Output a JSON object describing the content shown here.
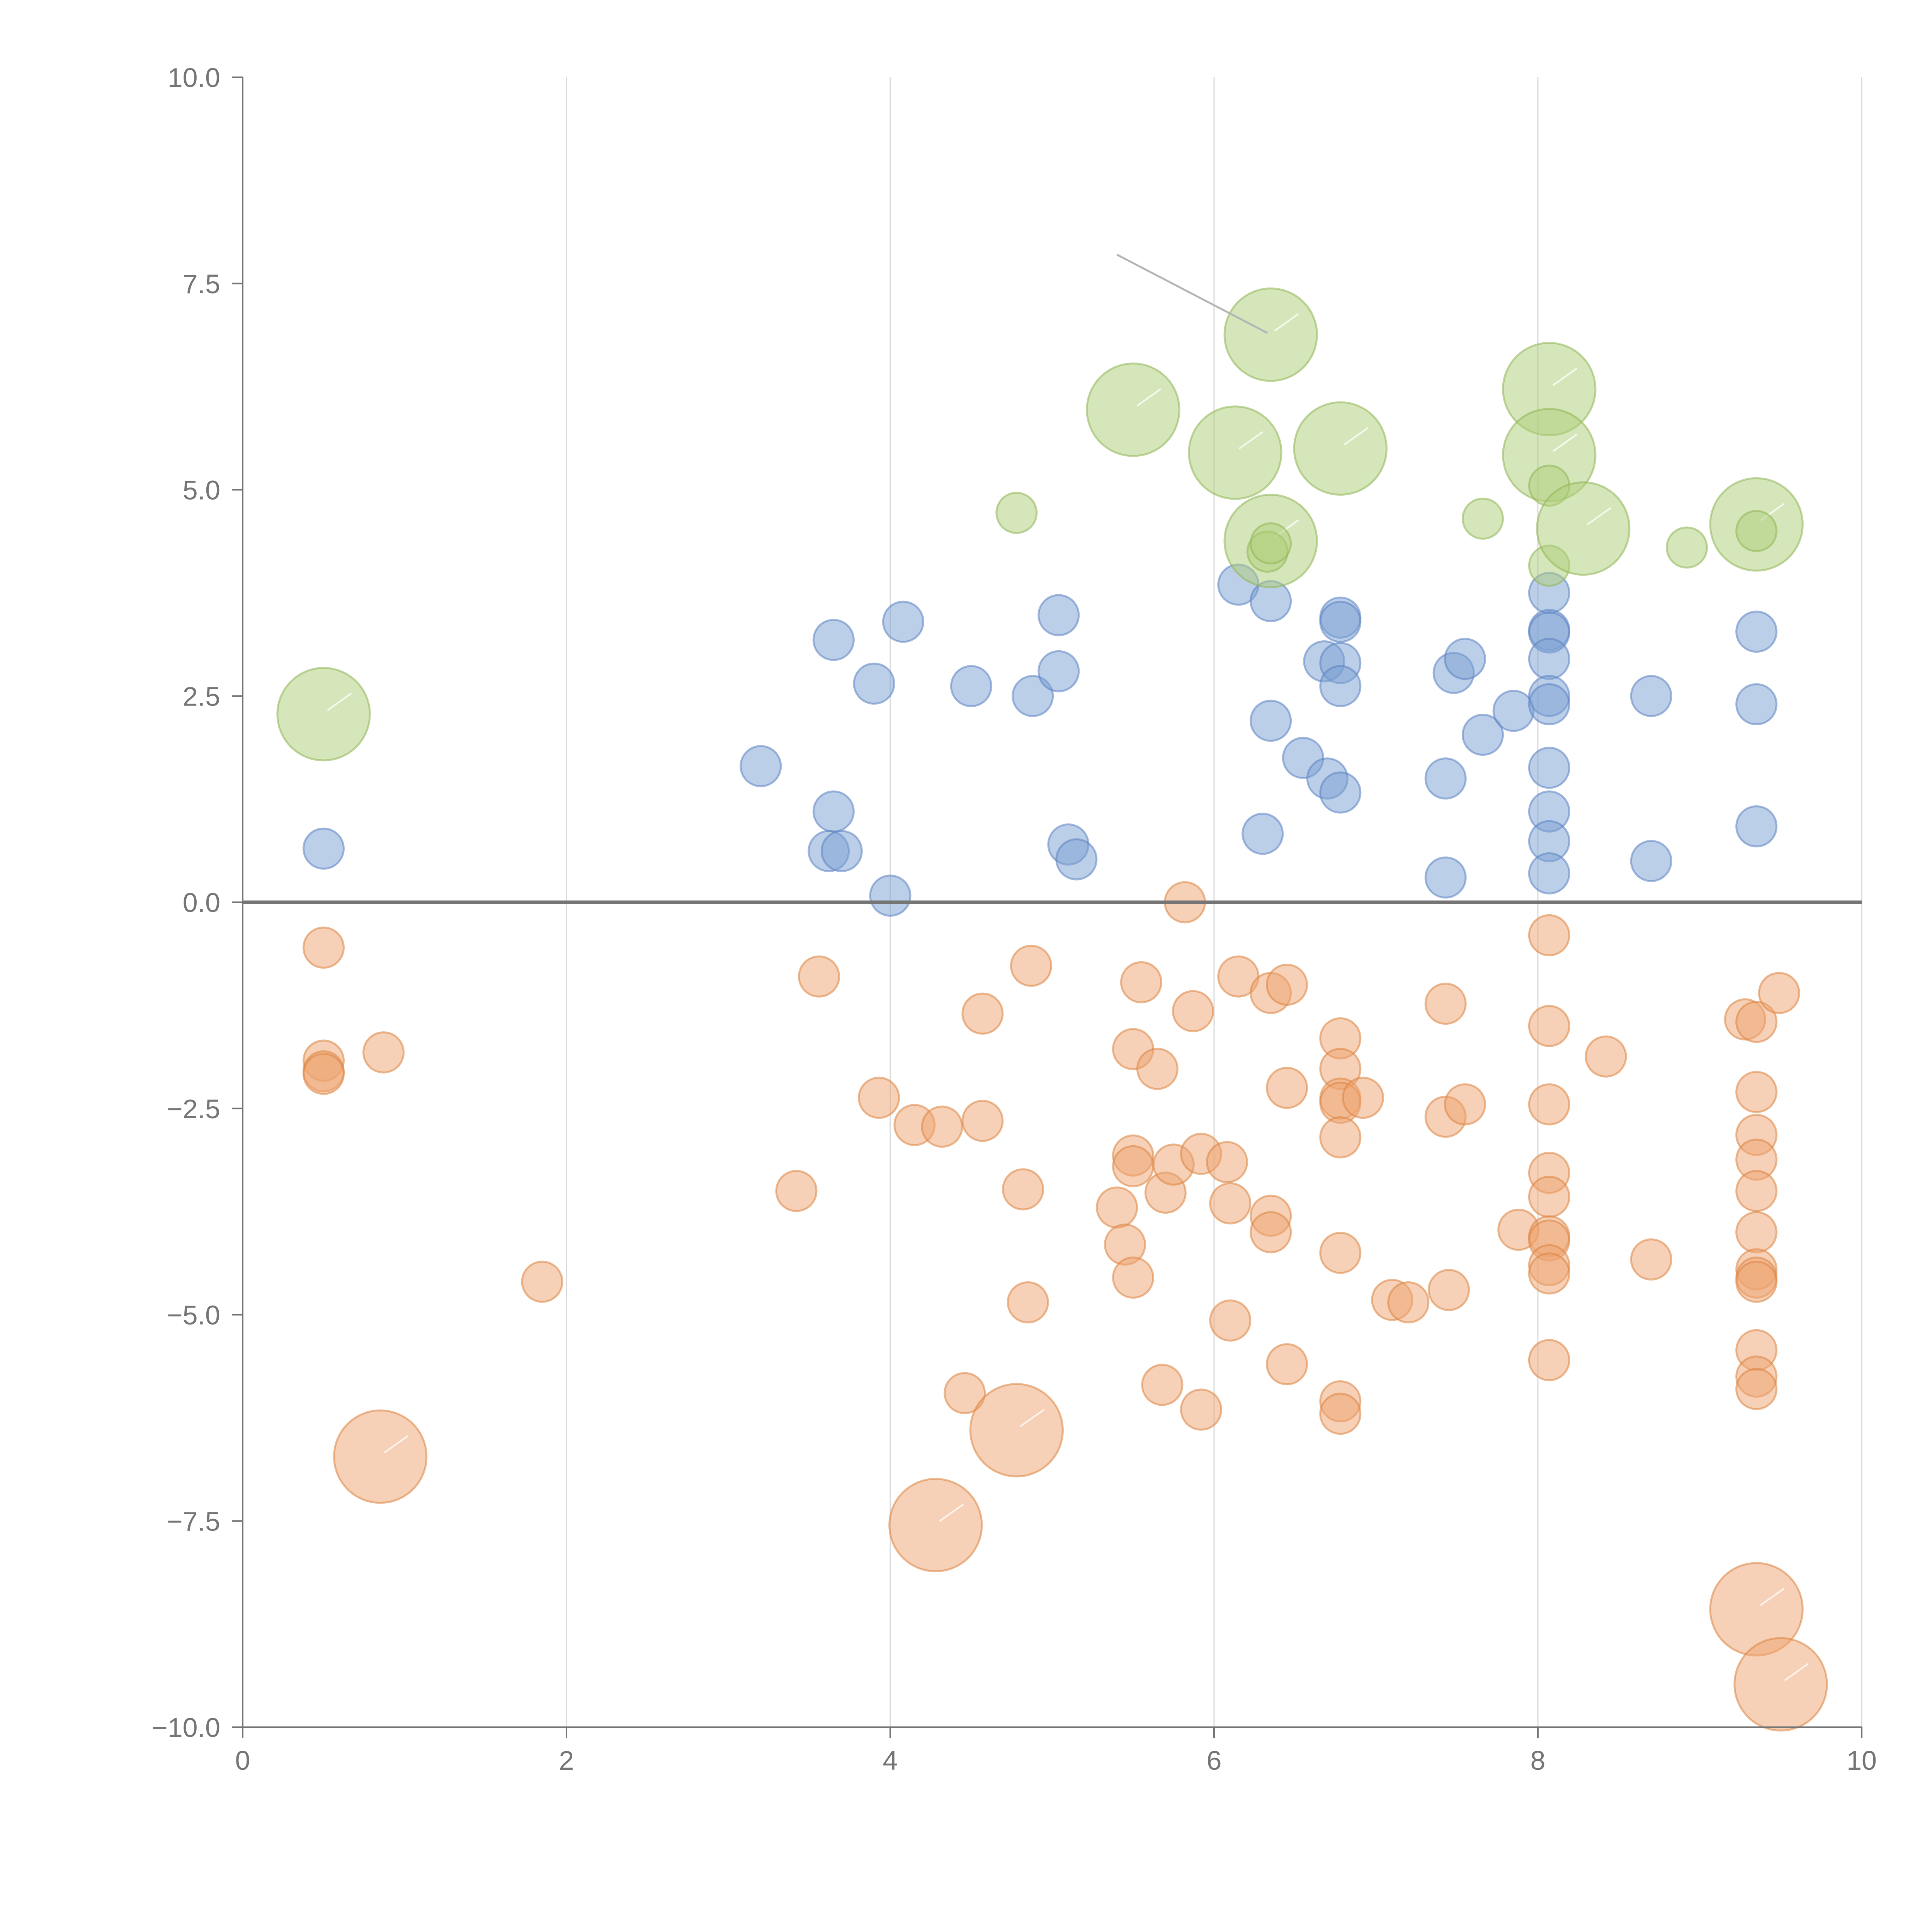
{
  "chart_data": {
    "type": "scatter",
    "title": "",
    "xlabel": "",
    "ylabel": "",
    "xlim": [
      0,
      10
    ],
    "ylim": [
      -10,
      10
    ],
    "grid": "vertical",
    "reference_line_y": 0,
    "x_ticks": [
      0,
      2,
      4,
      6,
      8,
      10
    ],
    "x_tick_labels": [
      "0",
      "2",
      "4",
      "6",
      "8",
      "10"
    ],
    "y_ticks": [
      10,
      7.5,
      5,
      2.5,
      0,
      -2.5,
      -5,
      -7.5,
      -10
    ],
    "y_tick_labels": [
      "10.0",
      "7.5",
      "5.0",
      "2.5",
      "0.0",
      "−2.5",
      "−5.0",
      "−7.5",
      "−10.0"
    ],
    "colors": {
      "blue": "#7a9fd2",
      "blue_stroke": "#5b82c2",
      "orange": "#eda46f",
      "orange_stroke": "#dd8340",
      "green": "#aecd78",
      "green_stroke": "#8fb553"
    },
    "series": [
      {
        "name": "blue",
        "color_key": "blue",
        "points": [
          [
            0.5,
            0.65,
            1
          ],
          [
            3.2,
            1.65,
            1
          ],
          [
            3.65,
            3.18,
            1
          ],
          [
            3.9,
            2.65,
            1
          ],
          [
            3.65,
            1.1,
            1
          ],
          [
            3.62,
            0.62,
            1
          ],
          [
            3.7,
            0.62,
            1
          ],
          [
            4.08,
            3.4,
            1
          ],
          [
            4.0,
            0.08,
            1
          ],
          [
            4.5,
            2.62,
            1
          ],
          [
            4.88,
            2.5,
            1
          ],
          [
            5.04,
            3.48,
            1
          ],
          [
            5.04,
            2.8,
            1
          ],
          [
            5.1,
            0.7,
            1
          ],
          [
            5.15,
            0.52,
            1
          ],
          [
            6.15,
            3.85,
            1
          ],
          [
            6.35,
            3.65,
            1
          ],
          [
            6.35,
            2.2,
            1
          ],
          [
            6.3,
            0.83,
            1
          ],
          [
            6.55,
            1.75,
            1
          ],
          [
            6.68,
            2.92,
            1
          ],
          [
            6.7,
            1.5,
            1
          ],
          [
            6.78,
            3.45,
            1
          ],
          [
            6.78,
            3.4,
            1
          ],
          [
            6.78,
            2.9,
            1
          ],
          [
            6.78,
            2.62,
            1
          ],
          [
            6.78,
            1.33,
            1
          ],
          [
            7.43,
            1.5,
            1
          ],
          [
            7.43,
            0.3,
            1
          ],
          [
            7.48,
            2.78,
            1
          ],
          [
            7.55,
            2.95,
            1
          ],
          [
            7.66,
            2.03,
            1
          ],
          [
            7.85,
            2.32,
            1
          ],
          [
            8.07,
            3.75,
            1
          ],
          [
            8.07,
            3.3,
            1
          ],
          [
            8.07,
            3.27,
            1
          ],
          [
            8.07,
            2.95,
            1
          ],
          [
            8.07,
            2.5,
            1
          ],
          [
            8.07,
            2.4,
            1
          ],
          [
            8.07,
            1.63,
            1
          ],
          [
            8.07,
            1.1,
            1
          ],
          [
            8.07,
            0.74,
            1
          ],
          [
            8.07,
            0.35,
            1
          ],
          [
            8.7,
            2.5,
            1
          ],
          [
            8.7,
            0.5,
            1
          ],
          [
            9.35,
            3.28,
            1
          ],
          [
            9.35,
            2.4,
            1
          ],
          [
            9.35,
            0.92,
            1
          ]
        ]
      },
      {
        "name": "orange",
        "color_key": "orange",
        "points": [
          [
            0.5,
            -0.55,
            1
          ],
          [
            0.5,
            -1.92,
            1
          ],
          [
            0.5,
            -2.05,
            1
          ],
          [
            0.5,
            -2.08,
            1
          ],
          [
            0.87,
            -1.82,
            1
          ],
          [
            0.85,
            -6.72,
            2.3
          ],
          [
            1.85,
            -4.6,
            1
          ],
          [
            3.42,
            -3.5,
            1
          ],
          [
            3.56,
            -0.9,
            1
          ],
          [
            3.93,
            -2.37,
            1
          ],
          [
            4.15,
            -2.7,
            1
          ],
          [
            4.32,
            -2.72,
            1
          ],
          [
            4.28,
            -7.55,
            2.3
          ],
          [
            4.46,
            -5.95,
            1
          ],
          [
            4.57,
            -1.35,
            1
          ],
          [
            4.57,
            -2.65,
            1
          ],
          [
            4.78,
            -6.4,
            2.3
          ],
          [
            4.82,
            -3.48,
            1
          ],
          [
            4.85,
            -4.85,
            1
          ],
          [
            4.87,
            -0.77,
            1
          ],
          [
            5.4,
            -3.7,
            1
          ],
          [
            5.45,
            -4.15,
            1
          ],
          [
            5.5,
            -1.78,
            1
          ],
          [
            5.5,
            -3.07,
            1
          ],
          [
            5.5,
            -3.2,
            1
          ],
          [
            5.5,
            -4.55,
            1
          ],
          [
            5.55,
            -0.97,
            1
          ],
          [
            5.65,
            -2.02,
            1
          ],
          [
            5.68,
            -5.85,
            1
          ],
          [
            5.7,
            -3.52,
            1
          ],
          [
            5.75,
            -3.18,
            1
          ],
          [
            5.82,
            0.0,
            1
          ],
          [
            5.87,
            -1.32,
            1
          ],
          [
            5.92,
            -3.05,
            1
          ],
          [
            5.92,
            -6.15,
            1
          ],
          [
            6.08,
            -3.15,
            1
          ],
          [
            6.1,
            -3.65,
            1
          ],
          [
            6.1,
            -5.07,
            1
          ],
          [
            6.15,
            -0.9,
            1
          ],
          [
            6.35,
            -1.1,
            1
          ],
          [
            6.35,
            -3.8,
            1
          ],
          [
            6.35,
            -4.0,
            1
          ],
          [
            6.45,
            -1.0,
            1
          ],
          [
            6.45,
            -2.25,
            1
          ],
          [
            6.45,
            -5.6,
            1
          ],
          [
            6.78,
            -1.65,
            1
          ],
          [
            6.78,
            -2.02,
            1
          ],
          [
            6.78,
            -2.38,
            1
          ],
          [
            6.78,
            -2.43,
            1
          ],
          [
            6.78,
            -2.85,
            1
          ],
          [
            6.78,
            -4.25,
            1
          ],
          [
            6.78,
            -6.05,
            1
          ],
          [
            6.78,
            -6.2,
            1
          ],
          [
            6.92,
            -2.37,
            1
          ],
          [
            7.1,
            -4.82,
            1
          ],
          [
            7.2,
            -4.85,
            1
          ],
          [
            7.43,
            -1.23,
            1
          ],
          [
            7.43,
            -2.6,
            1
          ],
          [
            7.45,
            -4.7,
            1
          ],
          [
            7.55,
            -2.45,
            1
          ],
          [
            7.88,
            -3.97,
            1
          ],
          [
            8.07,
            -0.4,
            1
          ],
          [
            8.07,
            -1.5,
            1
          ],
          [
            8.07,
            -2.45,
            1
          ],
          [
            8.07,
            -3.28,
            1
          ],
          [
            8.07,
            -3.57,
            1
          ],
          [
            8.07,
            -4.05,
            1
          ],
          [
            8.07,
            -4.1,
            1
          ],
          [
            8.07,
            -4.4,
            1
          ],
          [
            8.07,
            -4.5,
            1
          ],
          [
            8.07,
            -5.55,
            1
          ],
          [
            8.42,
            -1.87,
            1
          ],
          [
            8.7,
            -4.33,
            1
          ],
          [
            9.28,
            -1.42,
            1
          ],
          [
            9.35,
            -1.45,
            1
          ],
          [
            9.35,
            -2.3,
            1
          ],
          [
            9.35,
            -2.82,
            1
          ],
          [
            9.35,
            -3.12,
            1
          ],
          [
            9.35,
            -3.5,
            1
          ],
          [
            9.35,
            -4.0,
            1
          ],
          [
            9.35,
            -4.45,
            1
          ],
          [
            9.35,
            -4.55,
            1
          ],
          [
            9.35,
            -4.6,
            1
          ],
          [
            9.35,
            -5.43,
            1
          ],
          [
            9.35,
            -5.75,
            1
          ],
          [
            9.35,
            -5.9,
            1
          ],
          [
            9.35,
            -8.57,
            2.3
          ],
          [
            9.49,
            -1.1,
            1
          ],
          [
            9.5,
            -9.48,
            2.3
          ]
        ]
      },
      {
        "name": "green",
        "color_key": "green",
        "points": [
          [
            0.5,
            2.28,
            2.3
          ],
          [
            4.78,
            4.72,
            1
          ],
          [
            5.5,
            5.97,
            2.3
          ],
          [
            6.13,
            5.45,
            2.3
          ],
          [
            6.35,
            6.88,
            2.3
          ],
          [
            6.35,
            4.38,
            2.3
          ],
          [
            6.33,
            4.25,
            1
          ],
          [
            6.35,
            4.35,
            1
          ],
          [
            6.78,
            5.5,
            2.3
          ],
          [
            7.66,
            4.65,
            1
          ],
          [
            8.07,
            6.22,
            2.3
          ],
          [
            8.07,
            5.42,
            2.3
          ],
          [
            8.07,
            5.05,
            1
          ],
          [
            8.07,
            4.08,
            1
          ],
          [
            8.28,
            4.53,
            2.3
          ],
          [
            8.92,
            4.3,
            1
          ],
          [
            9.35,
            4.58,
            2.3
          ],
          [
            9.35,
            4.5,
            1
          ]
        ]
      }
    ],
    "leader_line": {
      "from": [
        5.4,
        7.85
      ],
      "to": [
        6.33,
        6.9
      ]
    }
  }
}
